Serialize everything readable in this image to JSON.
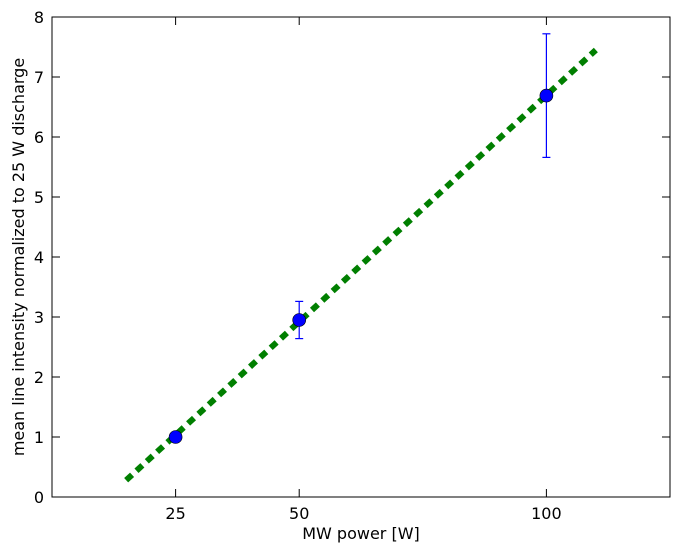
{
  "chart_data": {
    "type": "scatter",
    "xlabel": "MW power [W]",
    "ylabel": "mean line intensity normalized to 25 W discharge",
    "xlim": [
      0,
      125
    ],
    "ylim": [
      0,
      8
    ],
    "xticks": [
      25,
      50,
      100
    ],
    "yticks": [
      0,
      1,
      2,
      3,
      4,
      5,
      6,
      7,
      8
    ],
    "grid": false,
    "series": [
      {
        "type": "scatter-errorbar",
        "color": "#0000ff",
        "points": [
          {
            "x": 25,
            "y": 1.0,
            "yerr": 0.0
          },
          {
            "x": 50,
            "y": 2.95,
            "yerr": 0.31
          },
          {
            "x": 100,
            "y": 6.69,
            "yerr": 1.03
          }
        ]
      },
      {
        "type": "line",
        "style": "dashed",
        "color": "#007f00",
        "points": [
          {
            "x": 15,
            "y": 0.28
          },
          {
            "x": 110,
            "y": 7.45
          }
        ]
      }
    ]
  }
}
